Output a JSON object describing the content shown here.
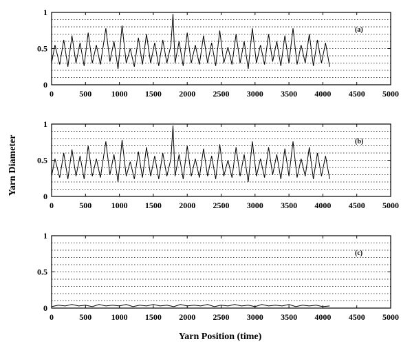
{
  "figure": {
    "ylabel": "Yarn Diameter",
    "xlabel": "Yarn Position (time)"
  },
  "chart_data": [
    {
      "type": "line",
      "panel_label": "(a)",
      "xlim": [
        0,
        5000
      ],
      "ylim": [
        0,
        1
      ],
      "x_ticks": [
        "0",
        "500",
        "1000",
        "1500",
        "2000",
        "2500",
        "3000",
        "3500",
        "4000",
        "4500",
        "5000"
      ],
      "y_ticks": [
        "0",
        "0.5",
        "1"
      ],
      "grid": "horizontal-dotted",
      "series": [
        {
          "x": [
            0,
            50,
            120,
            180,
            240,
            300,
            360,
            420,
            480,
            540,
            600,
            660,
            720,
            800,
            860,
            920,
            980,
            1040,
            1100,
            1160,
            1220,
            1280,
            1340,
            1400,
            1460,
            1520,
            1580,
            1640,
            1700,
            1760,
            1790,
            1820,
            1880,
            1940,
            2000,
            2060,
            2120,
            2180,
            2240,
            2300,
            2360,
            2420,
            2480,
            2540,
            2600,
            2660,
            2720,
            2780,
            2840,
            2900,
            2960,
            3020,
            3080,
            3140,
            3200,
            3260,
            3320,
            3380,
            3440,
            3500,
            3560,
            3620,
            3680,
            3740,
            3800,
            3860,
            3920,
            3980,
            4040,
            4100
          ],
          "y": [
            0.3,
            0.55,
            0.28,
            0.62,
            0.25,
            0.68,
            0.3,
            0.58,
            0.26,
            0.72,
            0.3,
            0.55,
            0.28,
            0.78,
            0.32,
            0.6,
            0.22,
            0.82,
            0.3,
            0.5,
            0.25,
            0.65,
            0.28,
            0.7,
            0.3,
            0.58,
            0.26,
            0.62,
            0.3,
            0.55,
            0.98,
            0.3,
            0.6,
            0.26,
            0.72,
            0.3,
            0.55,
            0.28,
            0.68,
            0.3,
            0.58,
            0.26,
            0.75,
            0.3,
            0.52,
            0.28,
            0.7,
            0.3,
            0.6,
            0.22,
            0.78,
            0.3,
            0.55,
            0.28,
            0.7,
            0.32,
            0.6,
            0.26,
            0.68,
            0.3,
            0.78,
            0.28,
            0.55,
            0.3,
            0.7,
            0.26,
            0.62,
            0.3,
            0.58,
            0.25
          ]
        }
      ]
    },
    {
      "type": "line",
      "panel_label": "(b)",
      "xlim": [
        0,
        5000
      ],
      "ylim": [
        0,
        1
      ],
      "x_ticks": [
        "0",
        "500",
        "1000",
        "1500",
        "2000",
        "2500",
        "3000",
        "3500",
        "4000",
        "4500",
        "5000"
      ],
      "y_ticks": [
        "0",
        "0.5",
        "1"
      ],
      "grid": "horizontal-dotted",
      "series": [
        {
          "x": [
            0,
            50,
            120,
            180,
            240,
            300,
            360,
            420,
            480,
            540,
            600,
            660,
            720,
            800,
            860,
            920,
            980,
            1040,
            1100,
            1160,
            1220,
            1280,
            1340,
            1400,
            1460,
            1520,
            1580,
            1640,
            1700,
            1760,
            1790,
            1820,
            1880,
            1940,
            2000,
            2060,
            2120,
            2180,
            2240,
            2300,
            2360,
            2420,
            2480,
            2540,
            2600,
            2660,
            2720,
            2780,
            2840,
            2900,
            2960,
            3020,
            3080,
            3140,
            3200,
            3260,
            3320,
            3380,
            3440,
            3500,
            3560,
            3620,
            3680,
            3740,
            3800,
            3860,
            3920,
            3980,
            4040,
            4100
          ],
          "y": [
            0.28,
            0.52,
            0.26,
            0.6,
            0.24,
            0.65,
            0.28,
            0.56,
            0.24,
            0.7,
            0.28,
            0.52,
            0.26,
            0.76,
            0.3,
            0.58,
            0.2,
            0.78,
            0.28,
            0.48,
            0.24,
            0.62,
            0.26,
            0.68,
            0.28,
            0.56,
            0.24,
            0.6,
            0.28,
            0.52,
            0.98,
            0.28,
            0.58,
            0.24,
            0.7,
            0.28,
            0.52,
            0.26,
            0.66,
            0.28,
            0.56,
            0.24,
            0.72,
            0.28,
            0.5,
            0.26,
            0.68,
            0.28,
            0.58,
            0.2,
            0.76,
            0.28,
            0.52,
            0.26,
            0.68,
            0.3,
            0.58,
            0.24,
            0.66,
            0.28,
            0.76,
            0.26,
            0.52,
            0.28,
            0.68,
            0.24,
            0.6,
            0.28,
            0.56,
            0.24
          ]
        }
      ]
    },
    {
      "type": "line",
      "panel_label": "(c)",
      "xlim": [
        0,
        5000
      ],
      "ylim": [
        0,
        1
      ],
      "x_ticks": [
        "0",
        "500",
        "1000",
        "1500",
        "2000",
        "2500",
        "3000",
        "3500",
        "4000",
        "4500",
        "5000"
      ],
      "y_ticks": [
        "0",
        "0.5",
        "1"
      ],
      "grid": "horizontal-dotted",
      "series": [
        {
          "x": [
            0,
            100,
            200,
            300,
            400,
            500,
            600,
            700,
            800,
            900,
            1000,
            1100,
            1200,
            1300,
            1400,
            1500,
            1600,
            1700,
            1800,
            1900,
            2000,
            2100,
            2200,
            2300,
            2400,
            2500,
            2600,
            2700,
            2800,
            2900,
            3000,
            3100,
            3200,
            3300,
            3400,
            3500,
            3600,
            3700,
            3800,
            3900,
            4000,
            4100
          ],
          "y": [
            0.02,
            0.04,
            0.03,
            0.05,
            0.03,
            0.04,
            0.02,
            0.05,
            0.03,
            0.04,
            0.03,
            0.05,
            0.02,
            0.04,
            0.03,
            0.05,
            0.03,
            0.04,
            0.02,
            0.05,
            0.03,
            0.04,
            0.03,
            0.05,
            0.02,
            0.04,
            0.03,
            0.05,
            0.03,
            0.04,
            0.02,
            0.05,
            0.03,
            0.04,
            0.03,
            0.05,
            0.02,
            0.04,
            0.03,
            0.04,
            0.02,
            0.03
          ]
        }
      ]
    }
  ]
}
